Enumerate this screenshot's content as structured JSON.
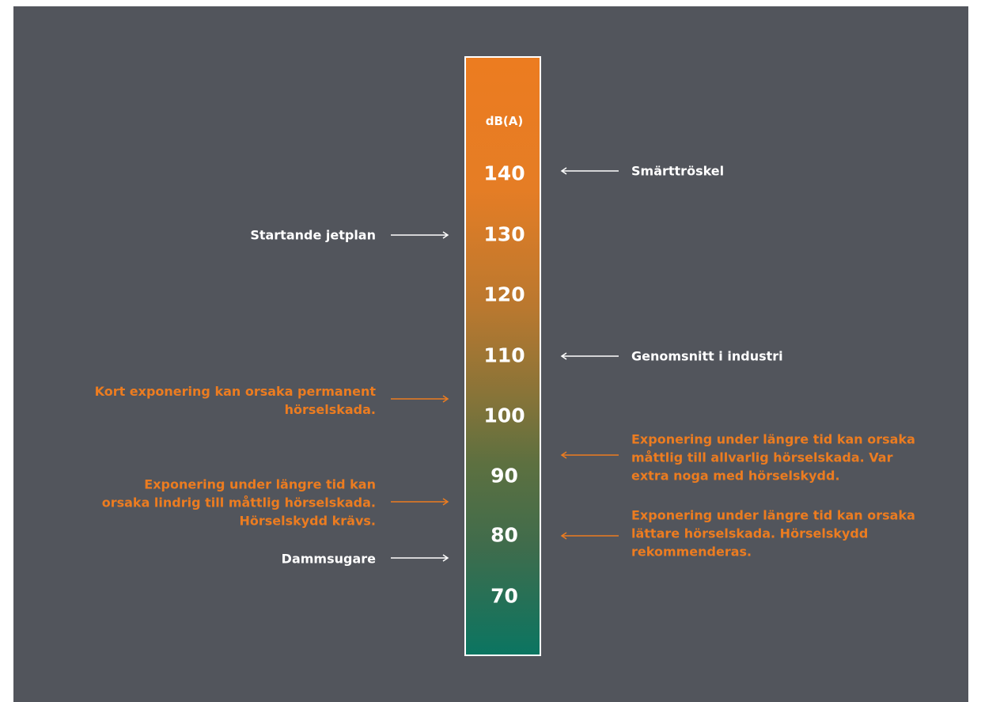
{
  "colors": {
    "background": "#52555c",
    "frame": "#ffffff",
    "normal_text": "#ffffff",
    "warning_text": "#ec7c20",
    "gradient_top": "#ec7c20",
    "gradient_bottom": "#0b7561"
  },
  "scale": {
    "unit": "dB(A)",
    "ticks": [
      "140",
      "130",
      "120",
      "110",
      "100",
      "90",
      "80",
      "70"
    ]
  },
  "annotations": {
    "left": [
      {
        "text": "Startande jetplan",
        "style": "normal"
      },
      {
        "text": "Kort exponering kan orsaka permanent\nhörselskada.",
        "style": "warning"
      },
      {
        "text": "Exponering under längre tid kan\norsaka lindrig till måttlig hörselskada.\nHörselskydd krävs.",
        "style": "warning"
      },
      {
        "text": "Dammsugare",
        "style": "normal"
      }
    ],
    "right": [
      {
        "text": "Smärttröskel",
        "style": "normal"
      },
      {
        "text": "Genomsnitt i industri",
        "style": "normal"
      },
      {
        "text": "Exponering under längre tid kan orsaka\nmåttlig till allvarlig hörselskada. Var\nextra noga med hörselskydd.",
        "style": "warning"
      },
      {
        "text": "Exponering under längre tid kan orsaka\nlättare hörselskada. Hörselskydd\nrekommenderas.",
        "style": "warning"
      }
    ]
  }
}
